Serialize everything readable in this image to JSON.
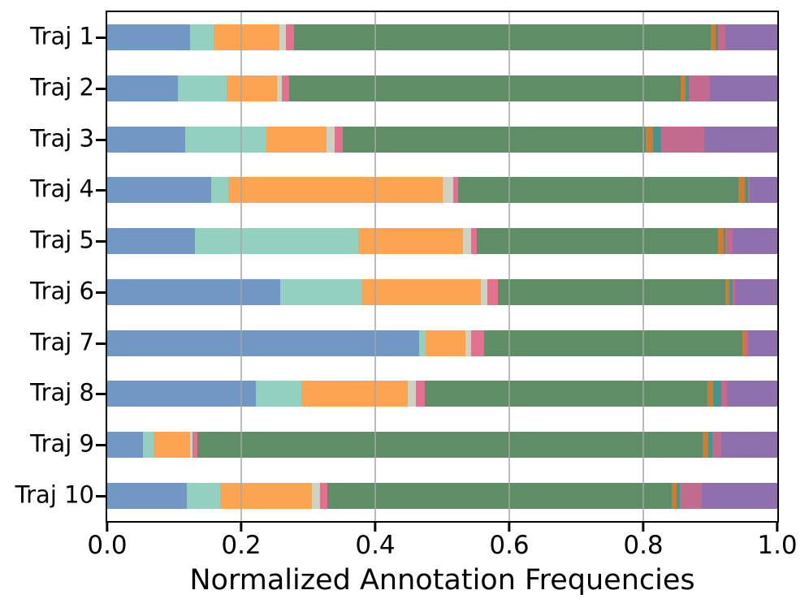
{
  "chart_data": {
    "type": "bar",
    "orientation": "horizontal",
    "stacked": true,
    "title": "",
    "xlabel": "Normalized Annotation Frequencies",
    "ylabel": "",
    "xlim": [
      0.0,
      1.0
    ],
    "xticks": [
      0.0,
      0.2,
      0.4,
      0.6,
      0.8,
      1.0
    ],
    "xtick_labels": [
      "0.0",
      "0.2",
      "0.4",
      "0.6",
      "0.8",
      "1.0"
    ],
    "grid": true,
    "grid_axis": "x",
    "legend": "none",
    "categories": [
      "Traj 1",
      "Traj 2",
      "Traj 3",
      "Traj 4",
      "Traj 5",
      "Traj 6",
      "Traj 7",
      "Traj 8",
      "Traj 9",
      "Traj 10"
    ],
    "series": [
      {
        "name": "blue-segment",
        "color": "#7197c4",
        "values": [
          0.124,
          0.106,
          0.116,
          0.155,
          0.131,
          0.258,
          0.465,
          0.222,
          0.053,
          0.119
        ]
      },
      {
        "name": "light-teal-segment",
        "color": "#93d0c0",
        "values": [
          0.035,
          0.072,
          0.121,
          0.025,
          0.243,
          0.121,
          0.01,
          0.068,
          0.016,
          0.05
        ]
      },
      {
        "name": "orange-segment",
        "color": "#fda453",
        "values": [
          0.098,
          0.075,
          0.09,
          0.321,
          0.157,
          0.179,
          0.059,
          0.159,
          0.055,
          0.137
        ]
      },
      {
        "name": "pale-olive-segment",
        "color": "#ccd3c2",
        "values": [
          0.01,
          0.008,
          0.012,
          0.015,
          0.012,
          0.009,
          0.009,
          0.012,
          0.003,
          0.011
        ]
      },
      {
        "name": "pink-segment",
        "color": "#e2718e",
        "values": [
          0.012,
          0.01,
          0.012,
          0.008,
          0.009,
          0.016,
          0.02,
          0.013,
          0.008,
          0.011
        ]
      },
      {
        "name": "green-segment",
        "color": "#5f8e66",
        "values": [
          0.622,
          0.585,
          0.453,
          0.418,
          0.36,
          0.339,
          0.385,
          0.422,
          0.753,
          0.514
        ]
      },
      {
        "name": "dark-orange-segment",
        "color": "#cc7c33",
        "values": [
          0.007,
          0.007,
          0.01,
          0.009,
          0.008,
          0.006,
          0.003,
          0.008,
          0.009,
          0.008
        ]
      },
      {
        "name": "dark-teal-segment",
        "color": "#46958c",
        "values": [
          0.003,
          0.005,
          0.013,
          0.005,
          0.002,
          0.005,
          0.001,
          0.012,
          0.006,
          0.005
        ]
      },
      {
        "name": "rose-segment",
        "color": "#c26b8d",
        "values": [
          0.011,
          0.031,
          0.064,
          0.003,
          0.012,
          0.004,
          0.004,
          0.009,
          0.013,
          0.032
        ]
      },
      {
        "name": "purple-segment",
        "color": "#8e70ae",
        "values": [
          0.078,
          0.101,
          0.109,
          0.041,
          0.066,
          0.063,
          0.044,
          0.075,
          0.084,
          0.113
        ]
      }
    ]
  },
  "style": {
    "gridline_color": "#a6a6a6",
    "spine_color": "#000000",
    "background": "#ffffff"
  }
}
